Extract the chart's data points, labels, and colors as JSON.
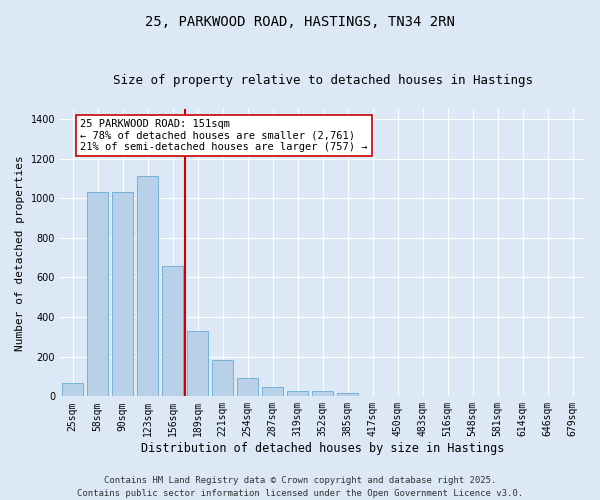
{
  "title": "25, PARKWOOD ROAD, HASTINGS, TN34 2RN",
  "subtitle": "Size of property relative to detached houses in Hastings",
  "xlabel": "Distribution of detached houses by size in Hastings",
  "ylabel": "Number of detached properties",
  "categories": [
    "25sqm",
    "58sqm",
    "90sqm",
    "123sqm",
    "156sqm",
    "189sqm",
    "221sqm",
    "254sqm",
    "287sqm",
    "319sqm",
    "352sqm",
    "385sqm",
    "417sqm",
    "450sqm",
    "483sqm",
    "516sqm",
    "548sqm",
    "581sqm",
    "614sqm",
    "646sqm",
    "679sqm"
  ],
  "values": [
    65,
    1030,
    1030,
    1110,
    660,
    330,
    185,
    90,
    48,
    28,
    25,
    15,
    0,
    0,
    0,
    0,
    0,
    0,
    0,
    0,
    0
  ],
  "bar_color": "#b8d0e8",
  "bar_edge_color": "#6aaad4",
  "vline_x": 4.5,
  "vline_color": "#cc0000",
  "annotation_text": "25 PARKWOOD ROAD: 151sqm\n← 78% of detached houses are smaller (2,761)\n21% of semi-detached houses are larger (757) →",
  "annotation_box_facecolor": "#ffffff",
  "annotation_box_edgecolor": "#cc0000",
  "ylim": [
    0,
    1450
  ],
  "yticks": [
    0,
    200,
    400,
    600,
    800,
    1000,
    1200,
    1400
  ],
  "bg_color": "#dce8f5",
  "plot_bg_color": "#dce8f5",
  "footer_text": "Contains HM Land Registry data © Crown copyright and database right 2025.\nContains public sector information licensed under the Open Government Licence v3.0.",
  "title_fontsize": 10,
  "subtitle_fontsize": 9,
  "xlabel_fontsize": 8.5,
  "ylabel_fontsize": 8,
  "tick_fontsize": 7,
  "annotation_fontsize": 7.5,
  "footer_fontsize": 6.5
}
